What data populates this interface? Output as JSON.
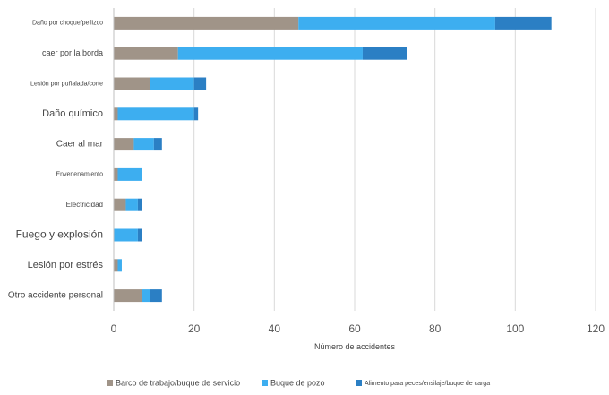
{
  "chart_data": {
    "type": "bar",
    "orientation": "horizontal",
    "stacked": true,
    "categories": [
      "Daño por choque/pellizco",
      "caer por la borda",
      "Lesión por puñalada/corte",
      "Daño químico",
      "Caer al mar",
      "Envenenamiento",
      "Electricidad",
      "Fuego y explosión",
      "Lesión por estrés",
      "Otro accidente personal"
    ],
    "series": [
      {
        "name": "Barco de trabajo/buque de servicio",
        "color": "#a09488",
        "values": [
          46,
          16,
          9,
          1,
          5,
          1,
          3,
          0,
          1,
          7
        ]
      },
      {
        "name": "Buque de pozo",
        "color": "#3daef0",
        "values": [
          49,
          46,
          11,
          19,
          5,
          6,
          3,
          6,
          1,
          2
        ]
      },
      {
        "name": "Alimento para peces/ensilaje/buque de carga",
        "color": "#2b7fc4",
        "values": [
          14,
          11,
          3,
          1,
          2,
          0,
          1,
          1,
          0,
          3
        ]
      }
    ],
    "xlabel": "Número de accidentes",
    "ylabel": "",
    "xlim": [
      0,
      120
    ],
    "xticks": [
      "0",
      "20",
      "40",
      "60",
      "80",
      "100",
      "120"
    ],
    "grid": true,
    "legend_position": "bottom"
  }
}
